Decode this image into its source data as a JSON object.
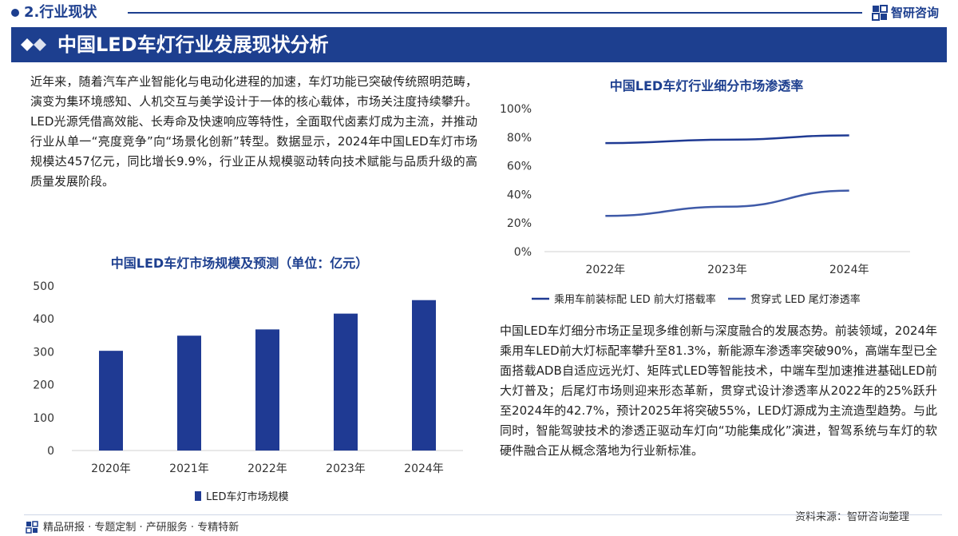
{
  "header": {
    "section": "2.行业现状",
    "brand": "智研咨询",
    "title": "中国LED车灯行业发展现状分析"
  },
  "text": {
    "left_paragraph": "近年来，随着汽车产业智能化与电动化进程的加速，车灯功能已突破传统照明范畴，演变为集环境感知、人机交互与美学设计于一体的核心载体，市场关注度持续攀升。LED光源凭借高效能、长寿命及快速响应等特性，全面取代卤素灯成为主流，并推动行业从单一“亮度竞争”向“场景化创新”转型。数据显示，2024年中国LED车灯市场规模达457亿元，同比增长9.9%，行业正从规模驱动转向技术赋能与品质升级的高质量发展阶段。",
    "right_paragraph": "中国LED车灯细分市场正呈现多维创新与深度融合的发展态势。前装领域，2024年乘用车LED前大灯标配率攀升至81.3%，新能源车渗透率突破90%，高端车型已全面搭载ADB自适应远光灯、矩阵式LED等智能技术，中端车型加速推进基础LED前大灯普及；后尾灯市场则迎来形态革新，贯穿式设计渗透率从2022年的25%跃升至2024年的42.7%，预计2025年将突破55%，LED灯源成为主流造型趋势。与此同时，智能驾驶技术的渗透正驱动车灯向“功能集成化”演进，智驾系统与车灯的软硬件融合正从概念落地为行业新标准。",
    "source": "资料来源：智研咨询整理"
  },
  "footer": {
    "text": "精品研报 · 专题定制 · 产研服务 · 专精特新"
  },
  "colors": {
    "brand": "#1d3f8f",
    "bar": "#1f3a93",
    "line1": "#1f3a93",
    "line2": "#3f5aa8",
    "axis": "#d0d0d0"
  },
  "chart_data": [
    {
      "type": "bar",
      "title": "中国LED车灯市场规模及预测（单位：亿元）",
      "categories": [
        "2020年",
        "2021年",
        "2022年",
        "2023年",
        "2024年"
      ],
      "series": [
        {
          "name": "LED车灯市场规模",
          "values": [
            303,
            349,
            368,
            416,
            457
          ]
        }
      ],
      "ylim": [
        0,
        500
      ],
      "yticks": [
        "0",
        "100",
        "200",
        "300",
        "400",
        "500"
      ],
      "grid": false,
      "legend": "bottom"
    },
    {
      "type": "line",
      "title": "中国LED车灯行业细分市场渗透率",
      "categories": [
        "2022年",
        "2023年",
        "2024年"
      ],
      "series": [
        {
          "name": "乘用车前装标配 LED 前大灯搭载率",
          "values": [
            75.9,
            78.3,
            81.3
          ]
        },
        {
          "name": "贯穿式 LED 尾灯渗透率",
          "values": [
            25.0,
            31.4,
            42.7
          ]
        }
      ],
      "ylim": [
        0,
        100
      ],
      "yticks": [
        "0%",
        "20%",
        "40%",
        "60%",
        "80%",
        "100%"
      ],
      "grid": false,
      "legend": "bottom"
    }
  ]
}
